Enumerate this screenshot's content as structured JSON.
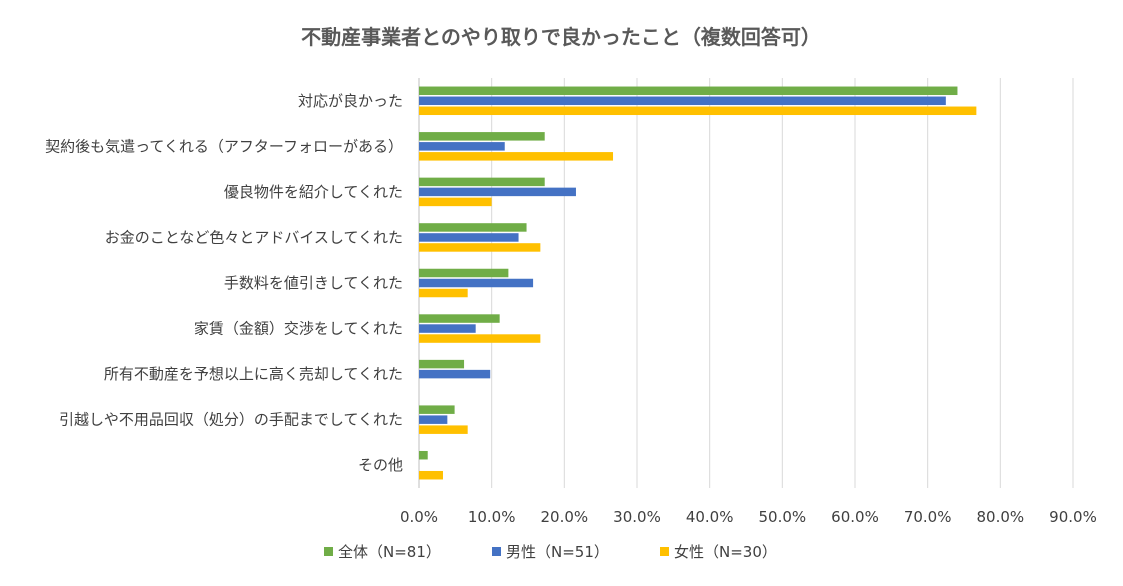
{
  "chart_data": {
    "type": "bar",
    "orientation": "horizontal",
    "title": "不動産事業者とのやり取りで良かったこと（複数回答可）",
    "categories": [
      "対応が良かった",
      "契約後も気遣ってくれる（アフターフォローがある）",
      "優良物件を紹介してくれた",
      "お金のことなど色々とアドバイスしてくれた",
      "手数料を値引きしてくれた",
      "家賃（金額）交渉をしてくれた",
      "所有不動産を予想以上に高く売却してくれた",
      "引越しや不用品回収（処分）の手配までしてくれた",
      "その他"
    ],
    "series": [
      {
        "name": "全体（N=81）",
        "color": "#70AD47",
        "values": [
          74.1,
          17.3,
          17.3,
          14.8,
          12.3,
          11.1,
          6.2,
          4.9,
          1.2
        ]
      },
      {
        "name": "男性（N=51）",
        "color": "#4472C4",
        "values": [
          72.5,
          11.8,
          21.6,
          13.7,
          15.7,
          7.8,
          9.8,
          3.9,
          0.0
        ]
      },
      {
        "name": "女性（N=30）",
        "color": "#FFC000",
        "values": [
          76.7,
          26.7,
          10.0,
          16.7,
          6.7,
          16.7,
          0.0,
          6.7,
          3.3
        ]
      }
    ],
    "xlim": [
      0,
      90
    ],
    "xticks": [
      "0.0%",
      "10.0%",
      "20.0%",
      "30.0%",
      "40.0%",
      "50.0%",
      "60.0%",
      "70.0%",
      "80.0%",
      "90.0%"
    ],
    "grid": true,
    "legend": "bottom"
  }
}
